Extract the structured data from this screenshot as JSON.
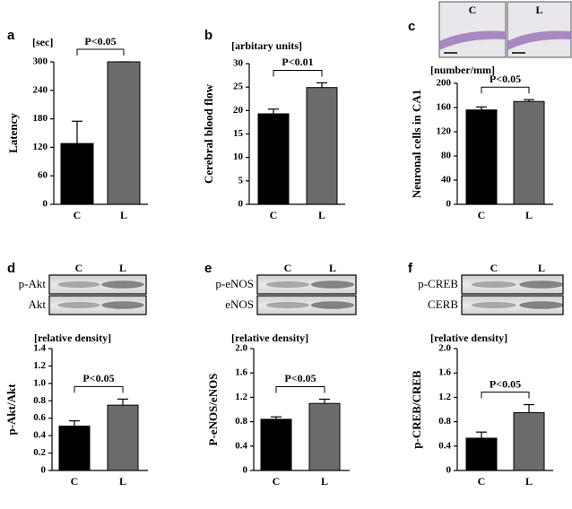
{
  "chart_data": [
    {
      "type": "bar",
      "panel": "a",
      "unit_label": "[sec]",
      "ylabel": "Latency",
      "annotation": "P<0.05",
      "categories": [
        "C",
        "L"
      ],
      "values": [
        128,
        300
      ],
      "errors": [
        47,
        0
      ],
      "colors": [
        "#000000",
        "#6b6b6b"
      ],
      "ylim": [
        0,
        300
      ],
      "yticks": [
        0,
        60,
        120,
        180,
        240,
        300
      ]
    },
    {
      "type": "bar",
      "panel": "b",
      "unit_label": "[arbitary units]",
      "ylabel": "Cerebral blood flow",
      "annotation": "P<0.01",
      "categories": [
        "C",
        "L"
      ],
      "values": [
        19.3,
        24.9
      ],
      "errors": [
        1,
        1
      ],
      "colors": [
        "#000000",
        "#6b6b6b"
      ],
      "ylim": [
        0,
        30
      ],
      "yticks": [
        0,
        5,
        10,
        15,
        20,
        25,
        30
      ]
    },
    {
      "type": "bar",
      "panel": "c",
      "unit_label": "[number/mm]",
      "ylabel": "Neuronal cells in CA1",
      "annotation": "P<0.05",
      "image_labels": [
        "C",
        "L"
      ],
      "categories": [
        "C",
        "L"
      ],
      "values": [
        156,
        170
      ],
      "errors": [
        5,
        3
      ],
      "colors": [
        "#000000",
        "#6b6b6b"
      ],
      "ylim": [
        0,
        200
      ],
      "yticks": [
        0,
        40,
        80,
        120,
        160,
        200
      ]
    },
    {
      "type": "bar",
      "panel": "d",
      "unit_label": "[relative density]",
      "ylabel": "p-Akt/Akt",
      "annotation": "P<0.05",
      "blot_columns": [
        "C",
        "L"
      ],
      "blot_rows": [
        "p-Akt",
        "Akt"
      ],
      "categories": [
        "C",
        "L"
      ],
      "values": [
        0.51,
        0.75
      ],
      "errors": [
        0.06,
        0.07
      ],
      "colors": [
        "#000000",
        "#6b6b6b"
      ],
      "ylim": [
        0,
        1.4
      ],
      "yticks": [
        0,
        0.2,
        0.4,
        0.6,
        0.8,
        {
          "value": 1,
          "label": "1.0"
        },
        1.2,
        1.4
      ]
    },
    {
      "type": "bar",
      "panel": "e",
      "unit_label": "[relative density]",
      "ylabel": "P-eNOS/eNOS",
      "annotation": "P<0.05",
      "blot_columns": [
        "C",
        "L"
      ],
      "blot_rows": [
        "p-eNOS",
        "eNOS"
      ],
      "categories": [
        "C",
        "L"
      ],
      "values": [
        0.84,
        1.1
      ],
      "errors": [
        0.04,
        0.07
      ],
      "colors": [
        "#000000",
        "#6b6b6b"
      ],
      "ylim": [
        0,
        2
      ],
      "yticks": [
        0,
        0.4,
        0.8,
        1.2,
        1.6,
        {
          "value": 2,
          "label": "2.0"
        }
      ]
    },
    {
      "type": "bar",
      "panel": "f",
      "unit_label": "[relative density]",
      "ylabel": "p-CREB/CREB",
      "annotation": "P<0.05",
      "blot_columns": [
        "C",
        "L"
      ],
      "blot_rows": [
        "p-CREB",
        "CERB"
      ],
      "categories": [
        "C",
        "L"
      ],
      "values": [
        0.53,
        0.95
      ],
      "errors": [
        0.1,
        0.13
      ],
      "colors": [
        "#000000",
        "#6b6b6b"
      ],
      "ylim": [
        0,
        2
      ],
      "yticks": [
        0,
        0.4,
        0.8,
        1.2,
        1.6,
        {
          "value": 2,
          "label": "2.0"
        }
      ]
    }
  ]
}
